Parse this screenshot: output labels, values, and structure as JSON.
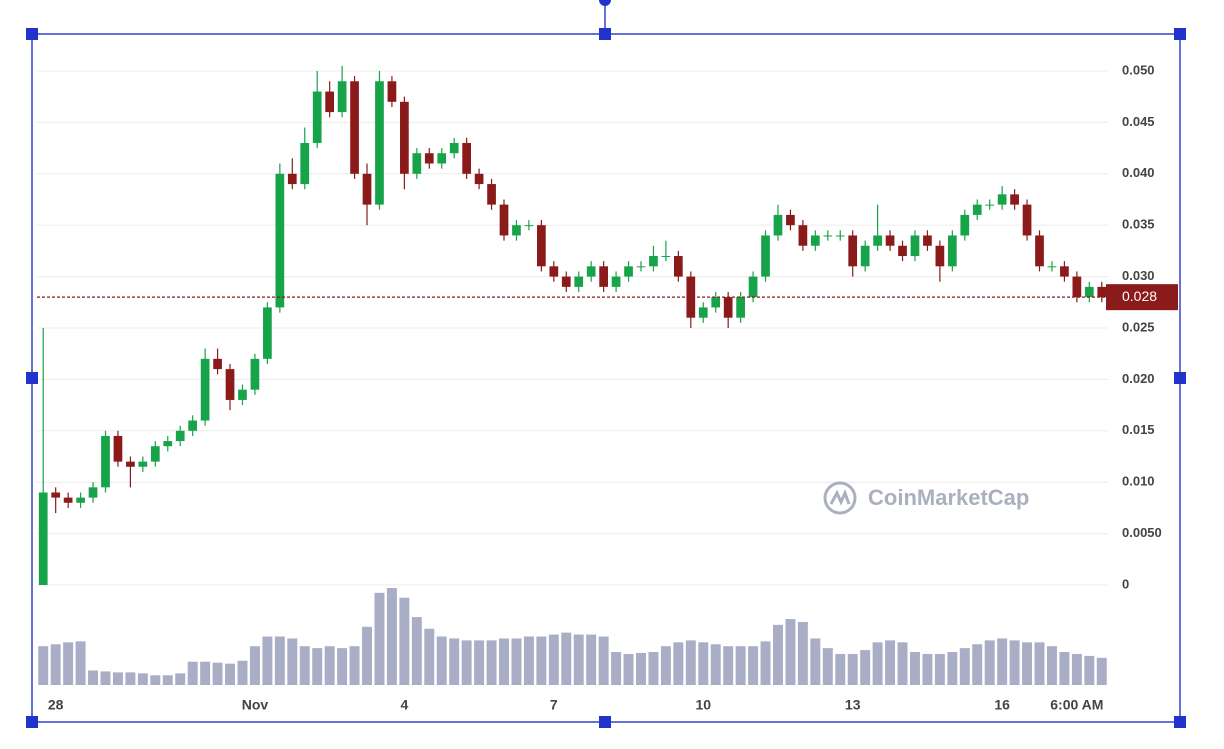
{
  "chart_data": {
    "type": "candlestick",
    "categories": [
      null,
      "28",
      null,
      null,
      null,
      null,
      null,
      null,
      null,
      null,
      null,
      null,
      null,
      null,
      null,
      null,
      null,
      "Nov",
      null,
      null,
      null,
      null,
      null,
      null,
      null,
      null,
      null,
      null,
      null,
      "4",
      null,
      null,
      null,
      null,
      null,
      null,
      null,
      null,
      null,
      null,
      null,
      "7",
      null,
      null,
      null,
      null,
      null,
      null,
      null,
      null,
      null,
      null,
      null,
      "10",
      null,
      null,
      null,
      null,
      null,
      null,
      null,
      null,
      null,
      null,
      null,
      "13",
      null,
      null,
      null,
      null,
      null,
      null,
      null,
      null,
      null,
      null,
      null,
      "16",
      null,
      null,
      null,
      null,
      null,
      "6:00 AM",
      null,
      null
    ],
    "open": [
      0,
      0.009,
      0.0085,
      0.008,
      0.0085,
      0.0095,
      0.0145,
      0.012,
      0.0115,
      0.012,
      0.0135,
      0.014,
      0.015,
      0.016,
      0.022,
      0.021,
      0.018,
      0.019,
      0.022,
      0.027,
      0.04,
      0.039,
      0.043,
      0.048,
      0.046,
      0.049,
      0.04,
      0.037,
      0.049,
      0.047,
      0.04,
      0.042,
      0.041,
      0.042,
      0.043,
      0.04,
      0.039,
      0.037,
      0.034,
      0.035,
      0.035,
      0.031,
      0.03,
      0.029,
      0.03,
      0.031,
      0.029,
      0.03,
      0.031,
      0.031,
      0.032,
      0.032,
      0.03,
      0.026,
      0.027,
      0.028,
      0.026,
      0.028,
      0.03,
      0.034,
      0.036,
      0.035,
      0.033,
      0.034,
      0.034,
      0.034,
      0.031,
      0.033,
      0.034,
      0.033,
      0.032,
      0.034,
      0.033,
      0.031,
      0.034,
      0.036,
      0.037,
      0.037,
      0.038,
      0.037,
      0.034,
      0.031,
      0.031,
      0.03,
      0.028,
      0.029
    ],
    "high": [
      0.025,
      0.0095,
      0.009,
      0.009,
      0.01,
      0.015,
      0.015,
      0.0125,
      0.0125,
      0.014,
      0.0145,
      0.0155,
      0.0165,
      0.023,
      0.023,
      0.0215,
      0.0195,
      0.0225,
      0.0275,
      0.041,
      0.0415,
      0.0445,
      0.05,
      0.049,
      0.0505,
      0.0495,
      0.041,
      0.05,
      0.0495,
      0.0475,
      0.0425,
      0.0425,
      0.0425,
      0.0435,
      0.0435,
      0.0405,
      0.0395,
      0.0375,
      0.0355,
      0.0355,
      0.0355,
      0.0315,
      0.0305,
      0.0305,
      0.0315,
      0.0315,
      0.0305,
      0.0315,
      0.0315,
      0.033,
      0.0335,
      0.0325,
      0.0305,
      0.0275,
      0.0285,
      0.0285,
      0.0285,
      0.0305,
      0.0345,
      0.037,
      0.0365,
      0.0355,
      0.0345,
      0.0345,
      0.0345,
      0.0345,
      0.0335,
      0.037,
      0.0345,
      0.0335,
      0.0345,
      0.0345,
      0.0335,
      0.0345,
      0.0365,
      0.0375,
      0.0375,
      0.0388,
      0.0385,
      0.0375,
      0.0345,
      0.0315,
      0.0315,
      0.0305,
      0.0295,
      0.0295
    ],
    "low": [
      0,
      0.007,
      0.0075,
      0.0075,
      0.008,
      0.009,
      0.0115,
      0.0095,
      0.011,
      0.0115,
      0.013,
      0.0135,
      0.0145,
      0.0155,
      0.0205,
      0.017,
      0.0175,
      0.0185,
      0.0215,
      0.0265,
      0.0385,
      0.0385,
      0.0425,
      0.0455,
      0.0455,
      0.0395,
      0.035,
      0.0365,
      0.0465,
      0.0385,
      0.0395,
      0.0405,
      0.0405,
      0.0415,
      0.0395,
      0.0385,
      0.0365,
      0.0335,
      0.0335,
      0.0345,
      0.0305,
      0.0295,
      0.0285,
      0.0285,
      0.0295,
      0.0285,
      0.0285,
      0.0295,
      0.0305,
      0.0305,
      0.0315,
      0.0295,
      0.025,
      0.0255,
      0.0265,
      0.025,
      0.0255,
      0.0275,
      0.0295,
      0.0335,
      0.0345,
      0.0325,
      0.0325,
      0.0335,
      0.0335,
      0.03,
      0.0305,
      0.0325,
      0.0325,
      0.0315,
      0.0315,
      0.0325,
      0.0295,
      0.0305,
      0.0335,
      0.0355,
      0.0365,
      0.0365,
      0.0365,
      0.0335,
      0.0305,
      0.0305,
      0.0295,
      0.0275,
      0.0275,
      0.0275
    ],
    "close": [
      0.009,
      0.0085,
      0.008,
      0.0085,
      0.0095,
      0.0145,
      0.012,
      0.0115,
      0.012,
      0.0135,
      0.014,
      0.015,
      0.016,
      0.022,
      0.021,
      0.018,
      0.019,
      0.022,
      0.027,
      0.04,
      0.039,
      0.043,
      0.048,
      0.046,
      0.049,
      0.04,
      0.037,
      0.049,
      0.047,
      0.04,
      0.042,
      0.041,
      0.042,
      0.043,
      0.04,
      0.039,
      0.037,
      0.034,
      0.035,
      0.035,
      0.031,
      0.03,
      0.029,
      0.03,
      0.031,
      0.029,
      0.03,
      0.031,
      0.031,
      0.032,
      0.032,
      0.03,
      0.026,
      0.027,
      0.028,
      0.026,
      0.028,
      0.03,
      0.034,
      0.036,
      0.035,
      0.033,
      0.034,
      0.034,
      0.034,
      0.031,
      0.033,
      0.034,
      0.033,
      0.032,
      0.034,
      0.033,
      0.031,
      0.034,
      0.036,
      0.037,
      0.037,
      0.038,
      0.037,
      0.034,
      0.031,
      0.031,
      0.03,
      0.028,
      0.029,
      0.028
    ],
    "volume": [
      40,
      42,
      44,
      45,
      15,
      14,
      13,
      13,
      12,
      10,
      10,
      12,
      24,
      24,
      23,
      22,
      25,
      40,
      50,
      50,
      48,
      40,
      38,
      40,
      38,
      40,
      60,
      95,
      100,
      90,
      70,
      58,
      50,
      48,
      46,
      46,
      46,
      48,
      48,
      50,
      50,
      52,
      54,
      52,
      52,
      50,
      34,
      32,
      33,
      34,
      40,
      44,
      46,
      44,
      42,
      40,
      40,
      40,
      45,
      62,
      68,
      65,
      48,
      38,
      32,
      32,
      36,
      44,
      46,
      44,
      34,
      32,
      32,
      34,
      38,
      42,
      46,
      48,
      46,
      44,
      44,
      40,
      34,
      32,
      30,
      28
    ],
    "volume_lim": [
      0,
      100
    ],
    "up_color": "#16a34a",
    "down_color": "#8b1a1a",
    "volume_color": "#a9aec6",
    "ylim": [
      0,
      0.0535
    ],
    "yticks": [
      0,
      {
        "value": 0.005,
        "label": "0.0050"
      },
      {
        "value": 0.01,
        "label": "0.010"
      },
      {
        "value": 0.015,
        "label": "0.015"
      },
      {
        "value": 0.02,
        "label": "0.020"
      },
      {
        "value": 0.025,
        "label": "0.025"
      },
      {
        "value": 0.03,
        "label": "0.030"
      },
      {
        "value": 0.035,
        "label": "0.035"
      },
      {
        "value": 0.04,
        "label": "0.040"
      },
      {
        "value": 0.045,
        "label": "0.045"
      },
      {
        "value": 0.05,
        "label": "0.050"
      }
    ],
    "grid": true,
    "current_price": 0.028,
    "watermark": "CoinMarketCap"
  }
}
